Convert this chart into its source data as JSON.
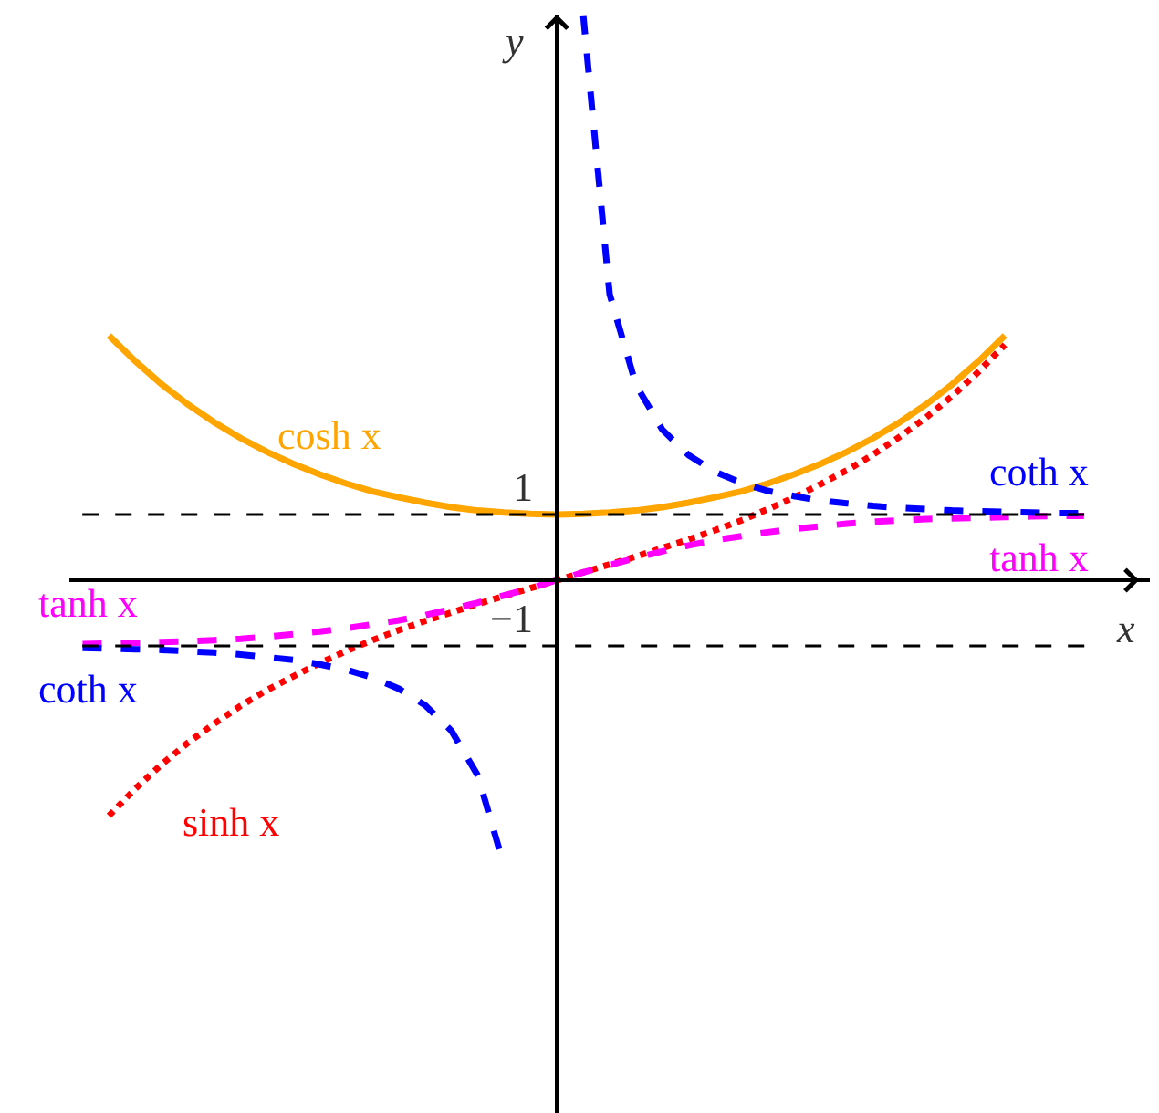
{
  "chart_data": {
    "type": "line",
    "xlabel": "x",
    "ylabel": "y",
    "categories": [
      null,
      null,
      null,
      null,
      null,
      null,
      null,
      null,
      null,
      null,
      null,
      null,
      null,
      null,
      null,
      null,
      null,
      null,
      null,
      null,
      null,
      null,
      null,
      null,
      null,
      null,
      null,
      null,
      null,
      null,
      null,
      null,
      null,
      null,
      null,
      null,
      null,
      null,
      null,
      null,
      null
    ],
    "ylim": [
      -8.1,
      8.6
    ],
    "yticks": [
      {
        "value": -1,
        "label": "−1"
      },
      1
    ],
    "tick_labels": "y",
    "grid": false,
    "legend": false,
    "marker": "none",
    "ref_lines": [
      {
        "axis": "y",
        "value": 1,
        "color": "#000000",
        "line_style": "dashed"
      },
      {
        "axis": "y",
        "value": -1,
        "color": "#000000",
        "line_style": "dashed"
      }
    ],
    "series": [
      {
        "name": "cosh x",
        "color": "#ffa500",
        "line_style": "solid",
        "values": [
          null,
          3.72,
          3.33,
          2.98,
          2.67,
          2.4,
          2.16,
          1.95,
          1.77,
          1.61,
          1.47,
          1.35,
          1.26,
          1.18,
          1.11,
          1.06,
          1.03,
          1.01,
          1.0,
          1.01,
          1.03,
          1.06,
          1.11,
          1.18,
          1.26,
          1.35,
          1.47,
          1.61,
          1.77,
          1.95,
          2.16,
          2.4,
          2.67,
          2.98,
          3.33,
          3.72,
          null,
          null,
          null,
          null,
          null
        ]
      },
      {
        "name": "sinh x",
        "color": "#ff0000",
        "line_style": "dotted",
        "values": [
          null,
          -3.58,
          -3.17,
          -2.8,
          -2.47,
          -2.18,
          -1.91,
          -1.67,
          -1.46,
          -1.26,
          -1.08,
          -0.91,
          -0.76,
          -0.62,
          -0.49,
          -0.36,
          -0.24,
          -0.12,
          0,
          0.12,
          0.24,
          0.36,
          0.49,
          0.62,
          0.76,
          0.91,
          1.08,
          1.26,
          1.46,
          1.67,
          1.91,
          2.18,
          2.47,
          2.8,
          3.17,
          3.58,
          null,
          null,
          null,
          null,
          null
        ]
      },
      {
        "name": "tanh x",
        "color": "#ff00ff",
        "line_style": "dashed",
        "values": [
          -0.97,
          -0.96,
          -0.95,
          -0.94,
          -0.93,
          -0.91,
          -0.89,
          -0.86,
          -0.82,
          -0.78,
          -0.73,
          -0.67,
          -0.61,
          -0.53,
          -0.44,
          -0.34,
          -0.23,
          -0.12,
          0,
          0.12,
          0.23,
          0.34,
          0.44,
          0.53,
          0.61,
          0.67,
          0.73,
          0.78,
          0.82,
          0.86,
          0.89,
          0.91,
          0.93,
          0.94,
          0.95,
          0.96,
          0.97,
          0.98,
          0.98,
          null,
          null
        ]
      },
      {
        "name": "coth x",
        "color": "#0000ff",
        "line_style": "dashed",
        "values": [
          -1.03,
          -1.04,
          -1.05,
          -1.06,
          -1.08,
          -1.1,
          -1.13,
          -1.17,
          -1.21,
          -1.28,
          -1.36,
          -1.48,
          -1.65,
          -1.9,
          -2.29,
          -2.97,
          -4.35,
          null,
          null,
          8.59,
          4.35,
          2.97,
          2.29,
          1.9,
          1.65,
          1.48,
          1.36,
          1.28,
          1.21,
          1.17,
          1.13,
          1.1,
          1.08,
          1.06,
          1.05,
          1.04,
          1.03,
          1.02,
          1.02,
          null,
          null
        ]
      }
    ]
  }
}
